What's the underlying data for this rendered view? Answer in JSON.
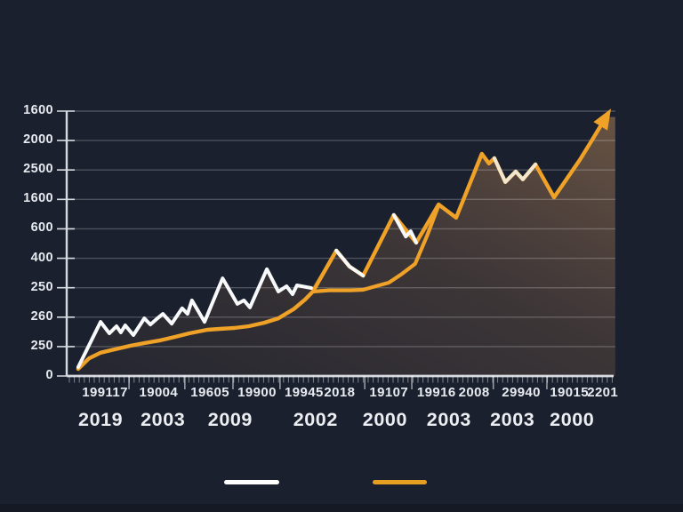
{
  "colors": {
    "background": "#1a202e",
    "axis": "#d7dae1",
    "grid": "rgba(255,255,255,0.22)",
    "tick": "rgba(255,255,255,0.45)",
    "separator": "rgba(255,255,255,0.55)",
    "text": "#e7eaef",
    "white_line": "#f8f9fa",
    "cream_line": "#f1e7cf",
    "orange_line": "#efa227",
    "legend_white": "#ffffff",
    "legend_orange": "#e69e20",
    "area_gradient": [
      "rgba(200,140,90,0.06)",
      "rgba(200,140,90,0.20)",
      "rgba(220,160,100,0.40)"
    ]
  },
  "chart_data": {
    "type": "line",
    "title": "",
    "xlabel": "",
    "ylabel": "",
    "grid": true,
    "legend_position": "bottom",
    "y_tick_labels_top_to_bottom": [
      "1600",
      "2000",
      "2500",
      "1600",
      "600",
      "400",
      "250",
      "260",
      "250",
      "0"
    ],
    "y_axis_units_range": [
      0,
      9
    ],
    "x_minor_tick_labels": [
      {
        "label": "199117",
        "x": 7.0
      },
      {
        "label": "19004",
        "x": 16.8
      },
      {
        "label": "19605",
        "x": 26.2
      },
      {
        "label": "19900",
        "x": 34.8
      },
      {
        "label": "19945",
        "x": 43.4
      },
      {
        "label": "2018",
        "x": 49.9
      },
      {
        "label": "19107",
        "x": 58.9
      },
      {
        "label": "19916",
        "x": 67.6
      },
      {
        "label": "2008",
        "x": 74.5
      },
      {
        "label": "29940",
        "x": 83.1
      },
      {
        "label": "19015",
        "x": 91.9
      },
      {
        "label": "2201",
        "x": 98.0
      }
    ],
    "x_year_labels": [
      {
        "label": "2019",
        "x": 6.2
      },
      {
        "label": "2003",
        "x": 17.6
      },
      {
        "label": "2009",
        "x": 29.9
      },
      {
        "label": "2002",
        "x": 45.5
      },
      {
        "label": "2000",
        "x": 58.2
      },
      {
        "label": "2003",
        "x": 69.9
      },
      {
        "label": "2003",
        "x": 81.5
      },
      {
        "label": "2000",
        "x": 92.4
      }
    ],
    "group_separators_x": [
      11.4,
      21.6,
      30.4,
      39.0,
      54.5,
      63.1,
      78.0,
      87.8
    ],
    "series": [
      {
        "name": "white-jagged-series",
        "color_key": "white_line",
        "points": [
          [
            2.1,
            0.3
          ],
          [
            6.2,
            1.84
          ],
          [
            7.8,
            1.45
          ],
          [
            9.1,
            1.69
          ],
          [
            9.9,
            1.48
          ],
          [
            10.7,
            1.72
          ],
          [
            12.2,
            1.39
          ],
          [
            14.2,
            1.96
          ],
          [
            15.3,
            1.75
          ],
          [
            16.4,
            1.93
          ],
          [
            17.6,
            2.11
          ],
          [
            19.2,
            1.78
          ],
          [
            21.1,
            2.3
          ],
          [
            22.1,
            2.11
          ],
          [
            22.9,
            2.57
          ],
          [
            25.2,
            1.84
          ],
          [
            28.5,
            3.32
          ],
          [
            31.2,
            2.45
          ],
          [
            32.4,
            2.57
          ],
          [
            33.5,
            2.33
          ],
          [
            36.6,
            3.63
          ],
          [
            38.7,
            2.87
          ],
          [
            40.2,
            3.05
          ],
          [
            41.3,
            2.78
          ],
          [
            42.1,
            3.08
          ],
          [
            44.7,
            2.99
          ]
        ]
      },
      {
        "name": "orange-main-series",
        "color_key": "orange_line",
        "arrow_end": true,
        "jagged_start_index": 18,
        "points": [
          [
            2.1,
            0.24
          ],
          [
            4.1,
            0.6
          ],
          [
            6.2,
            0.79
          ],
          [
            8.9,
            0.91
          ],
          [
            11.7,
            1.03
          ],
          [
            14.3,
            1.12
          ],
          [
            17.1,
            1.21
          ],
          [
            19.8,
            1.33
          ],
          [
            22.4,
            1.45
          ],
          [
            25.7,
            1.57
          ],
          [
            28.0,
            1.6
          ],
          [
            30.6,
            1.63
          ],
          [
            33.3,
            1.69
          ],
          [
            36.1,
            1.81
          ],
          [
            38.7,
            1.96
          ],
          [
            41.5,
            2.27
          ],
          [
            43.6,
            2.6
          ],
          [
            45.0,
            2.87
          ],
          [
            49.3,
            4.26
          ],
          [
            51.7,
            3.72
          ],
          [
            54.2,
            3.41
          ],
          [
            59.8,
            5.47
          ],
          [
            63.9,
            4.53
          ],
          [
            68.0,
            5.83
          ],
          [
            71.2,
            5.38
          ],
          [
            75.9,
            7.55
          ],
          [
            77.2,
            7.22
          ],
          [
            78.2,
            7.4
          ],
          [
            80.2,
            6.59
          ],
          [
            82.1,
            6.95
          ],
          [
            83.4,
            6.68
          ],
          [
            85.7,
            7.19
          ],
          [
            89.1,
            6.07
          ],
          [
            93.8,
            7.34
          ],
          [
            96.0,
            8.0
          ],
          [
            98.6,
            8.8
          ]
        ]
      },
      {
        "name": "orange-smooth-underpass",
        "color_key": "orange_line",
        "points": [
          [
            45.0,
            2.87
          ],
          [
            48.0,
            2.91
          ],
          [
            51.7,
            2.91
          ],
          [
            54.2,
            2.93
          ],
          [
            56.5,
            3.05
          ],
          [
            58.9,
            3.17
          ],
          [
            61.3,
            3.47
          ],
          [
            63.7,
            3.81
          ],
          [
            65.9,
            4.77
          ],
          [
            68.0,
            5.8
          ]
        ]
      }
    ],
    "white_overlay_segments": [
      {
        "color_key": "white_line",
        "points": [
          [
            49.3,
            4.26
          ],
          [
            51.7,
            3.72
          ],
          [
            54.2,
            3.41
          ]
        ]
      },
      {
        "color_key": "white_line",
        "points": [
          [
            59.8,
            5.47
          ],
          [
            62.0,
            4.74
          ],
          [
            62.9,
            4.92
          ],
          [
            63.9,
            4.53
          ]
        ]
      },
      {
        "color_key": "cream_line",
        "points": [
          [
            78.2,
            7.4
          ],
          [
            80.2,
            6.59
          ],
          [
            82.1,
            6.95
          ],
          [
            83.4,
            6.68
          ],
          [
            85.7,
            7.19
          ]
        ]
      }
    ],
    "area_fill_corner": [
      100.3,
      8.8
    ]
  },
  "legend": {
    "items": [
      {
        "name": "white-series-swatch",
        "color_key": "legend_white"
      },
      {
        "name": "orange-series-swatch",
        "color_key": "legend_orange"
      }
    ]
  }
}
